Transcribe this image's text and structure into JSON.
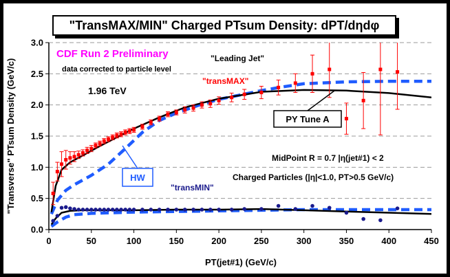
{
  "chart_data": {
    "type": "scatter",
    "title": "\"TransMAX/MIN\" Charged PTsum Density: dPT/dηdφ",
    "xlabel": "PT(jet#1)  (GeV/c)",
    "ylabel": "\"Transverse\" PTsum Density (GeV/c)",
    "xlim": [
      0,
      450
    ],
    "ylim": [
      0,
      3.0
    ],
    "xticks": [
      0,
      50,
      100,
      150,
      200,
      250,
      300,
      350,
      400,
      450
    ],
    "yticks": [
      0.0,
      0.5,
      1.0,
      1.5,
      2.0,
      2.5,
      3.0
    ],
    "xtick_labels": [
      "0",
      "50",
      "100",
      "150",
      "200",
      "250",
      "300",
      "350",
      "400",
      "450"
    ],
    "ytick_labels": [
      "0.0",
      "0.5",
      "1.0",
      "1.5",
      "2.0",
      "2.5",
      "3.0"
    ],
    "grid": "horizontal dashed",
    "annotations": {
      "cdf": "CDF Run 2 Preliminary",
      "corrected": "data corrected to particle level",
      "energy": "1.96 TeV",
      "leading_jet": "\"Leading Jet\"",
      "transmax": "\"transMAX\"",
      "transmin": "\"transMIN\"",
      "pytune": "PY Tune A",
      "hw": "HW",
      "midpoint": "MidPoint R = 0.7 |η(jet#1) < 2",
      "charged": "Charged Particles (|η|<1.0, PT>0.5 GeV/c)"
    },
    "colors": {
      "transmax": "#ff0000",
      "transmin": "#1a1a8c",
      "hw": "#1f5cff",
      "pytune": "#000000",
      "cdf": "#ff00ff",
      "grid": "#999999"
    },
    "series": [
      {
        "name": "\"transMAX\"",
        "marker": "square",
        "x": [
          5,
          10,
          15,
          20,
          25,
          30,
          35,
          40,
          45,
          50,
          55,
          60,
          65,
          70,
          75,
          80,
          85,
          90,
          95,
          100,
          110,
          120,
          130,
          140,
          150,
          160,
          170,
          180,
          190,
          200,
          215,
          230,
          250,
          270,
          290,
          310,
          330,
          350,
          370,
          390,
          410
        ],
        "y": [
          0.58,
          0.93,
          1.05,
          1.12,
          1.15,
          1.17,
          1.2,
          1.23,
          1.27,
          1.3,
          1.35,
          1.38,
          1.42,
          1.45,
          1.48,
          1.51,
          1.53,
          1.56,
          1.58,
          1.6,
          1.65,
          1.72,
          1.78,
          1.85,
          1.88,
          1.92,
          1.95,
          2.0,
          2.02,
          2.07,
          2.12,
          2.17,
          2.2,
          2.28,
          2.35,
          2.5,
          2.57,
          1.78,
          2.07,
          2.57,
          2.53
        ],
        "yerr": [
          0.18,
          0.15,
          0.2,
          0.15,
          0.1,
          0.08,
          0.06,
          0.05,
          0.05,
          0.05,
          0.04,
          0.04,
          0.04,
          0.04,
          0.04,
          0.04,
          0.04,
          0.04,
          0.04,
          0.04,
          0.04,
          0.04,
          0.04,
          0.04,
          0.04,
          0.05,
          0.05,
          0.05,
          0.06,
          0.06,
          0.07,
          0.08,
          0.1,
          0.12,
          0.15,
          0.3,
          0.45,
          0.25,
          0.45,
          1.05,
          0.6
        ]
      },
      {
        "name": "\"transMIN\"",
        "marker": "circle",
        "x": [
          5,
          10,
          15,
          20,
          25,
          30,
          35,
          40,
          45,
          50,
          55,
          60,
          65,
          70,
          75,
          80,
          85,
          90,
          95,
          100,
          110,
          120,
          130,
          140,
          150,
          160,
          170,
          180,
          190,
          200,
          215,
          230,
          250,
          270,
          290,
          310,
          330,
          350,
          370,
          390,
          410
        ],
        "y": [
          0.14,
          0.22,
          0.35,
          0.36,
          0.34,
          0.33,
          0.32,
          0.32,
          0.32,
          0.32,
          0.32,
          0.32,
          0.32,
          0.32,
          0.32,
          0.32,
          0.32,
          0.32,
          0.32,
          0.32,
          0.32,
          0.32,
          0.32,
          0.32,
          0.32,
          0.32,
          0.32,
          0.32,
          0.32,
          0.32,
          0.32,
          0.33,
          0.33,
          0.38,
          0.33,
          0.38,
          0.35,
          0.27,
          0.17,
          0.15,
          0.34
        ]
      },
      {
        "name": "PY Tune A (transMAX)",
        "x": [
          3,
          8,
          15,
          25,
          40,
          60,
          80,
          100,
          130,
          160,
          200,
          250,
          300,
          350,
          400,
          450
        ],
        "y": [
          0.28,
          0.7,
          0.96,
          1.08,
          1.19,
          1.34,
          1.48,
          1.62,
          1.8,
          1.96,
          2.1,
          2.21,
          2.24,
          2.23,
          2.19,
          2.12
        ]
      },
      {
        "name": "PY Tune A (transMIN)",
        "x": [
          3,
          8,
          15,
          25,
          40,
          60,
          100,
          150,
          200,
          250,
          300,
          350,
          400,
          450
        ],
        "y": [
          0.08,
          0.18,
          0.27,
          0.3,
          0.31,
          0.31,
          0.31,
          0.32,
          0.32,
          0.33,
          0.31,
          0.29,
          0.27,
          0.25
        ]
      },
      {
        "name": "HW (transMAX)",
        "x": [
          3,
          10,
          20,
          30,
          50,
          70,
          90,
          110,
          130,
          150,
          175,
          200,
          225,
          250,
          275,
          300,
          350,
          400,
          450
        ],
        "y": [
          0.25,
          0.47,
          0.63,
          0.72,
          0.87,
          1.05,
          1.3,
          1.56,
          1.75,
          1.87,
          1.99,
          2.09,
          2.16,
          2.23,
          2.29,
          2.34,
          2.37,
          2.38,
          2.38
        ]
      },
      {
        "name": "HW (transMIN)",
        "x": [
          3,
          10,
          20,
          30,
          50,
          100,
          150,
          200,
          250,
          300,
          350,
          400,
          450
        ],
        "y": [
          0.05,
          0.12,
          0.2,
          0.24,
          0.26,
          0.28,
          0.29,
          0.3,
          0.31,
          0.32,
          0.32,
          0.32,
          0.32
        ]
      }
    ]
  }
}
